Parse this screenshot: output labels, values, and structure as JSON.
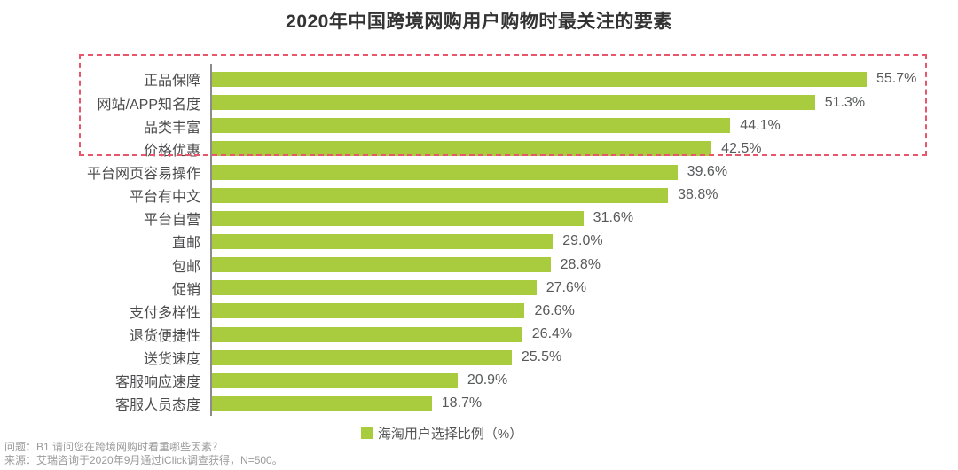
{
  "page": {
    "title": "2020年中国跨境网购用户购物时最关注的要素"
  },
  "chart_data": {
    "type": "bar",
    "orientation": "horizontal",
    "title": "2020年中国跨境网购用户购物时最关注的要素",
    "categories": [
      "正品保障",
      "网站/APP知名度",
      "品类丰富",
      "价格优惠",
      "平台网页容易操作",
      "平台有中文",
      "平台自营",
      "直邮",
      "包邮",
      "促销",
      "支付多样性",
      "退货便捷性",
      "送货速度",
      "客服响应速度",
      "客服人员态度"
    ],
    "values": [
      55.7,
      51.3,
      44.1,
      42.5,
      39.6,
      38.8,
      31.6,
      29.0,
      28.8,
      27.6,
      26.6,
      26.4,
      25.5,
      20.9,
      18.7
    ],
    "value_labels": [
      "55.7%",
      "51.3%",
      "44.1%",
      "42.5%",
      "39.6%",
      "38.8%",
      "31.6%",
      "29.0%",
      "28.8%",
      "27.6%",
      "26.6%",
      "26.4%",
      "25.5%",
      "20.9%",
      "18.7%"
    ],
    "xlabel": "",
    "ylabel": "",
    "xlim": [
      0,
      60
    ],
    "grid": false,
    "legend_entries": [
      "海淘用户选择比例（%）"
    ],
    "legend_position": "bottom",
    "highlighted_categories": [
      "正品保障",
      "网站/APP知名度",
      "品类丰富",
      "价格优惠"
    ],
    "highlight_style": "dashed-box"
  },
  "legend": {
    "label": "海淘用户选择比例（%）"
  },
  "footer": {
    "question": "问题：B1.请问您在跨境网购时看重哪些因素？",
    "source": "来源：艾瑞咨询于2020年9月通过iClick调查获得，N=500。"
  },
  "colors": {
    "bar": "#a9cc3e",
    "highlight_border": "#e8566b",
    "axis": "#8c8c8c",
    "title_text": "#333333",
    "category_text": "#4c4c4e",
    "value_text": "#58595b",
    "legend_text": "#555555",
    "footer_text": "#9b9b9b",
    "background": "#ffffff"
  }
}
